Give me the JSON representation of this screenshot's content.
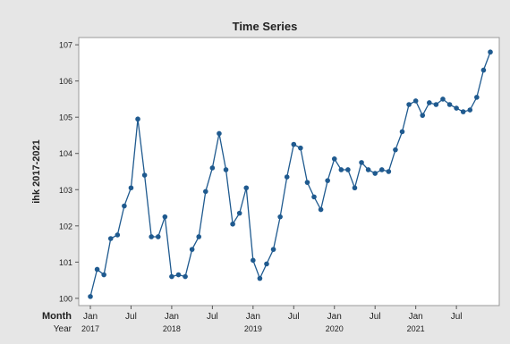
{
  "chart_data": {
    "type": "line",
    "title": "Time Series",
    "ylabel": "ihk 2017-2021",
    "ylim": [
      99.8,
      107.2
    ],
    "yticks": [
      100,
      101,
      102,
      103,
      104,
      105,
      106,
      107
    ],
    "ytick_labels": [
      "100",
      "101",
      "102",
      "103",
      "104",
      "105",
      "106",
      "107"
    ],
    "x_row_label_month": "Month",
    "x_row_label_year": "Year",
    "month_ticks": [
      {
        "label": "Jan",
        "index": 0
      },
      {
        "label": "Jul",
        "index": 6
      },
      {
        "label": "Jan",
        "index": 12
      },
      {
        "label": "Jul",
        "index": 18
      },
      {
        "label": "Jan",
        "index": 24
      },
      {
        "label": "Jul",
        "index": 30
      },
      {
        "label": "Jan",
        "index": 36
      },
      {
        "label": "Jul",
        "index": 42
      },
      {
        "label": "Jan",
        "index": 48
      },
      {
        "label": "Jul",
        "index": 54
      }
    ],
    "year_ticks": [
      {
        "label": "2017",
        "index": 0
      },
      {
        "label": "2018",
        "index": 12
      },
      {
        "label": "2019",
        "index": 24
      },
      {
        "label": "2020",
        "index": 36
      },
      {
        "label": "2021",
        "index": 48
      }
    ],
    "x": [
      "2017-01",
      "2017-02",
      "2017-03",
      "2017-04",
      "2017-05",
      "2017-06",
      "2017-07",
      "2017-08",
      "2017-09",
      "2017-10",
      "2017-11",
      "2017-12",
      "2018-01",
      "2018-02",
      "2018-03",
      "2018-04",
      "2018-05",
      "2018-06",
      "2018-07",
      "2018-08",
      "2018-09",
      "2018-10",
      "2018-11",
      "2018-12",
      "2019-01",
      "2019-02",
      "2019-03",
      "2019-04",
      "2019-05",
      "2019-06",
      "2019-07",
      "2019-08",
      "2019-09",
      "2019-10",
      "2019-11",
      "2019-12",
      "2020-01",
      "2020-02",
      "2020-03",
      "2020-04",
      "2020-05",
      "2020-06",
      "2020-07",
      "2020-08",
      "2020-09",
      "2020-10",
      "2020-11",
      "2020-12",
      "2021-01",
      "2021-02",
      "2021-03",
      "2021-04",
      "2021-05",
      "2021-06",
      "2021-07",
      "2021-08",
      "2021-09",
      "2021-10",
      "2021-11",
      "2021-12"
    ],
    "series": [
      {
        "values": [
          100.05,
          100.8,
          100.65,
          101.65,
          101.75,
          102.55,
          103.05,
          104.95,
          103.4,
          101.7,
          101.7,
          102.25,
          100.6,
          100.65,
          100.6,
          101.35,
          101.7,
          102.95,
          103.6,
          104.55,
          103.55,
          102.05,
          102.35,
          103.05,
          101.05,
          100.55,
          100.95,
          101.35,
          102.25,
          103.35,
          104.25,
          104.15,
          103.2,
          102.8,
          102.45,
          103.25,
          103.85,
          103.55,
          103.55,
          103.05,
          103.75,
          103.55,
          103.45,
          103.55,
          103.5,
          104.1,
          104.6,
          105.35,
          105.45,
          105.05,
          105.4,
          105.35,
          105.5,
          105.35,
          105.25,
          105.15,
          105.2,
          105.55,
          106.3,
          106.8
        ],
        "color": "#1f5a8f"
      }
    ],
    "grid": false,
    "legend": false,
    "background": "#e6e6e6",
    "plot_background": "#ffffff"
  }
}
